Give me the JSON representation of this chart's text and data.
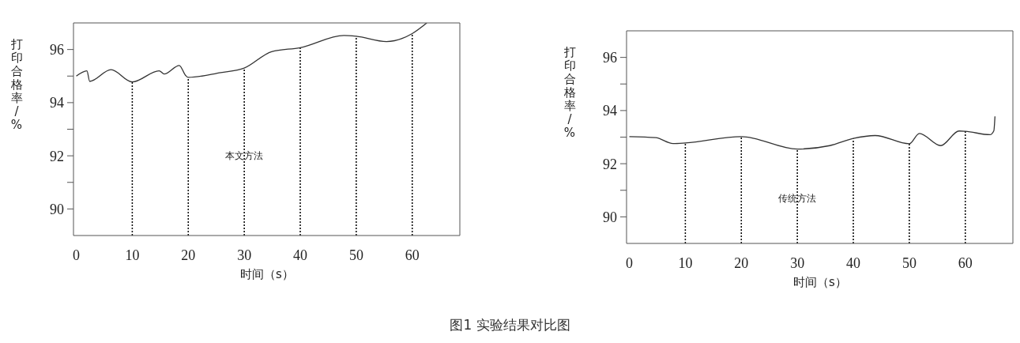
{
  "chart_data": [
    {
      "type": "line",
      "xlabel": "时间（s）",
      "ylabel": "打印合格率/%",
      "x": [
        0,
        1.9,
        2.4,
        6.2,
        10,
        14.8,
        15.7,
        18.4,
        19.5,
        20,
        25.8,
        30,
        34.9,
        40,
        47.8,
        50,
        55.4,
        60,
        62.6
      ],
      "series": [
        {
          "color": "#333333",
          "values": [
            95.0,
            95.2,
            94.8,
            95.24,
            94.78,
            95.2,
            95.08,
            95.4,
            95.03,
            94.95,
            95.13,
            95.3,
            95.92,
            96.07,
            96.53,
            96.5,
            96.3,
            96.6,
            97.0
          ]
        }
      ],
      "xlim": [
        -0.5,
        68.5
      ],
      "xticks": [
        0,
        10,
        20,
        30,
        40,
        50,
        60
      ],
      "ylim": [
        89,
        97
      ],
      "yticks": [
        90,
        {
          "value": 91,
          "label": null
        },
        92,
        {
          "value": 93,
          "label": null
        },
        94,
        {
          "value": 95,
          "label": null
        },
        96
      ],
      "ref_lines": [
        {
          "axis": "x",
          "value": 10,
          "line_style": "dotted",
          "color": "#000000"
        },
        {
          "axis": "x",
          "value": 20,
          "line_style": "dotted",
          "color": "#000000"
        },
        {
          "axis": "x",
          "value": 30,
          "line_style": "dotted",
          "color": "#000000"
        },
        {
          "axis": "x",
          "value": 40,
          "line_style": "dotted",
          "color": "#000000"
        },
        {
          "axis": "x",
          "value": 50,
          "line_style": "dotted",
          "color": "#000000"
        },
        {
          "axis": "x",
          "value": 60,
          "line_style": "dotted",
          "color": "#000000"
        }
      ],
      "annotations": [
        {
          "text": "本文方法",
          "x": 30,
          "y": 92
        }
      ]
    },
    {
      "type": "line",
      "xlabel": "时间（s）",
      "ylabel": "打印合格率/%",
      "x": [
        0,
        4.7,
        7.8,
        10,
        20,
        30,
        35.8,
        40,
        43.9,
        50,
        51.8,
        55.6,
        58.9,
        60,
        64.4,
        65.1,
        65.3
      ],
      "series": [
        {
          "color": "#333333",
          "values": [
            93.02,
            92.98,
            92.76,
            92.78,
            93.02,
            92.55,
            92.68,
            92.95,
            93.06,
            92.75,
            93.14,
            92.68,
            93.23,
            93.22,
            93.09,
            93.24,
            93.78
          ]
        }
      ],
      "xlim": [
        -0.5,
        68.5
      ],
      "xticks": [
        0,
        10,
        20,
        30,
        40,
        50,
        60
      ],
      "ylim": [
        89,
        97
      ],
      "yticks": [
        90,
        {
          "value": 91,
          "label": null
        },
        92,
        {
          "value": 93,
          "label": null
        },
        94,
        {
          "value": 95,
          "label": null
        },
        96
      ],
      "ref_lines": [
        {
          "axis": "x",
          "value": 10,
          "line_style": "dotted",
          "color": "#000000"
        },
        {
          "axis": "x",
          "value": 20,
          "line_style": "dotted",
          "color": "#000000"
        },
        {
          "axis": "x",
          "value": 30,
          "line_style": "dotted",
          "color": "#000000"
        },
        {
          "axis": "x",
          "value": 40,
          "line_style": "dotted",
          "color": "#000000"
        },
        {
          "axis": "x",
          "value": 50,
          "line_style": "dotted",
          "color": "#000000"
        },
        {
          "axis": "x",
          "value": 60,
          "line_style": "dotted",
          "color": "#000000"
        }
      ],
      "annotations": [
        {
          "text": "传统方法",
          "x": 30,
          "y": 90.7
        },
        "图1  实验结果对比图"
      ]
    }
  ]
}
